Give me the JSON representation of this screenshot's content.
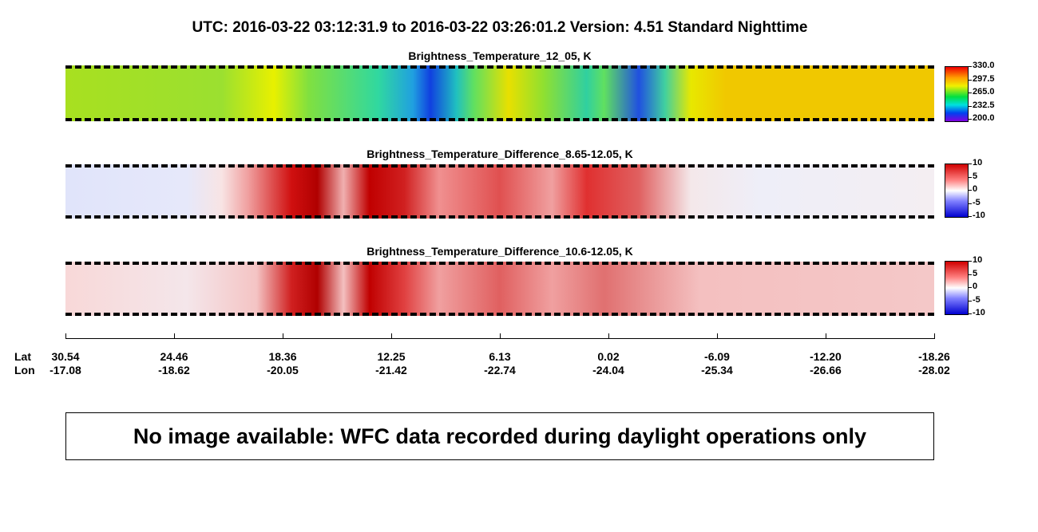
{
  "header": {
    "title": "UTC:  2016-03-22   03:12:31.9  to  2016-03-22   03:26:01.2    Version: 4.51  Standard Nighttime"
  },
  "panels": [
    {
      "title": "Brightness_Temperature_12_05, K",
      "colorbar": [
        "330.0",
        "297.5",
        "265.0",
        "232.5",
        "200.0"
      ]
    },
    {
      "title": "Brightness_Temperature_Difference_8.65-12.05, K",
      "colorbar": [
        "10",
        "5",
        "0",
        "-5",
        "-10"
      ]
    },
    {
      "title": "Brightness_Temperature_Difference_10.6-12.05, K",
      "colorbar": [
        "10",
        "5",
        "0",
        "-5",
        "-10"
      ]
    }
  ],
  "axis": {
    "lat_label": "Lat",
    "lon_label": "Lon",
    "lat": [
      "30.54",
      "24.46",
      "18.36",
      "12.25",
      "6.13",
      "0.02",
      "-6.09",
      "-12.20",
      "-18.26"
    ],
    "lon": [
      "-17.08",
      "-18.62",
      "-20.05",
      "-21.42",
      "-22.74",
      "-24.04",
      "-25.34",
      "-26.66",
      "-28.02"
    ]
  },
  "message": "No image available: WFC data recorded during daylight operations only"
}
